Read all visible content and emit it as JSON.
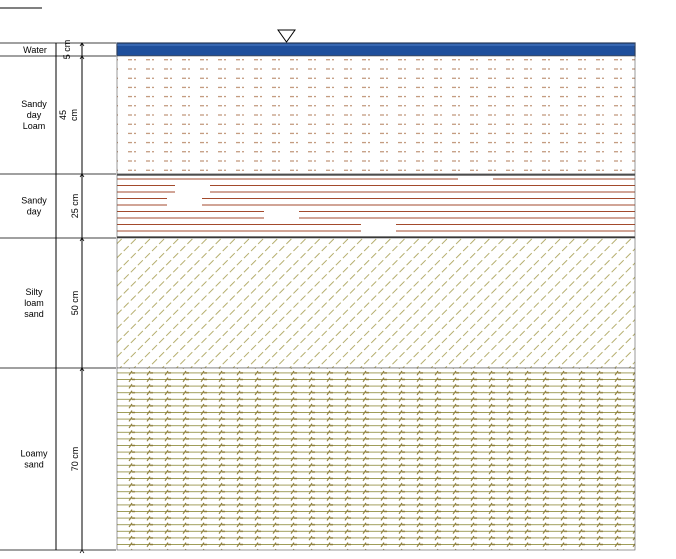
{
  "water_level_symbol": "inverted-triangle-icon",
  "colors": {
    "water": "#1f4f9c",
    "water_edge": "#0b2c66",
    "clay_loam_hatch": "#b07a55",
    "clay_line": "#a34a2c",
    "silty_hatch": "#a39a4a",
    "loamy_line": "#9c9a55",
    "loamy_tick": "#8a7a35",
    "axis": "#000000"
  },
  "layers": [
    {
      "id": "water",
      "label_lines": [
        "Water"
      ],
      "thickness_cm": 5,
      "thickness_label": "5 cm",
      "pattern": "water"
    },
    {
      "id": "sandy-clay-loam",
      "label_lines": [
        "Sandy",
        "day",
        "Loam"
      ],
      "thickness_cm": 45,
      "thickness_label_lines": [
        "45",
        "cm"
      ],
      "pattern": "dashes"
    },
    {
      "id": "sandy-clay",
      "label_lines": [
        "Sandy",
        "day"
      ],
      "thickness_cm": 25,
      "thickness_label": "25 cm",
      "pattern": "lines"
    },
    {
      "id": "silty-loam-sand",
      "label_lines": [
        "Silty",
        "loam",
        "sand"
      ],
      "thickness_cm": 50,
      "thickness_label": "50 cm",
      "pattern": "diagonal"
    },
    {
      "id": "loamy-sand",
      "label_lines": [
        "Loamy",
        "sand"
      ],
      "thickness_cm": 70,
      "thickness_label": "70 cm",
      "pattern": "loamy"
    }
  ]
}
